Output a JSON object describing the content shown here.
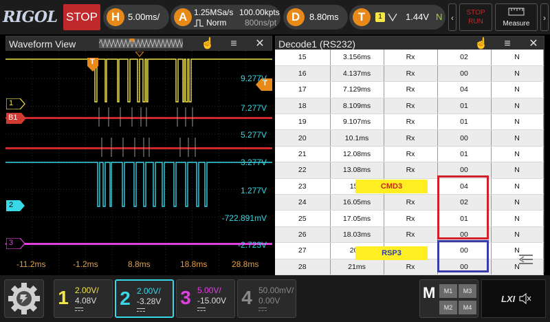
{
  "topbar": {
    "logo": "RIGOL",
    "run_state": "STOP",
    "horizontal": {
      "badge": "H",
      "timebase": "5.00ms/"
    },
    "acquire": {
      "badge": "A",
      "sample_rate": "1.25MSa/s",
      "mode": "Norm",
      "points": "100.00kpts",
      "time": "800ns/pt"
    },
    "delay": {
      "badge": "D",
      "value": "8.80ms"
    },
    "trigger": {
      "badge": "T",
      "source": "1",
      "level": "1.44V",
      "mode": "N"
    },
    "stop_run": {
      "line1": "STOP",
      "line2": "RUN"
    },
    "measure_label": "Measure"
  },
  "waveform_view": {
    "title": "Waveform View",
    "channel_markers": [
      "1",
      "B1",
      "2",
      "3"
    ],
    "trigger_marker": "T",
    "voltage_labels": [
      "9.277V",
      "7.277V",
      "5.277V",
      "3.277V",
      "1.277V",
      "-722.891mV",
      "-2.723V"
    ],
    "time_labels": [
      "-11.2ms",
      "-1.2ms",
      "8.8ms",
      "18.8ms",
      "28.8ms"
    ]
  },
  "decode": {
    "title": "Decode1 (RS232)",
    "rows": [
      [
        "15",
        "3.156ms",
        "Rx",
        "02",
        "N"
      ],
      [
        "16",
        "4.137ms",
        "Rx",
        "00",
        "N"
      ],
      [
        "17",
        "7.129ms",
        "Rx",
        "04",
        "N"
      ],
      [
        "18",
        "8.109ms",
        "Rx",
        "01",
        "N"
      ],
      [
        "19",
        "9.107ms",
        "Rx",
        "01",
        "N"
      ],
      [
        "20",
        "10.1ms",
        "Rx",
        "00",
        "N"
      ],
      [
        "21",
        "12.08ms",
        "Rx",
        "01",
        "N"
      ],
      [
        "22",
        "13.08ms",
        "Rx",
        "00",
        "N"
      ],
      [
        "23",
        "15.0",
        "",
        "04",
        "N"
      ],
      [
        "24",
        "16.05ms",
        "Rx",
        "02",
        "N"
      ],
      [
        "25",
        "17.05ms",
        "Rx",
        "01",
        "N"
      ],
      [
        "26",
        "18.03ms",
        "Rx",
        "00",
        "N"
      ],
      [
        "27",
        "20.0",
        "",
        "00",
        "N"
      ],
      [
        "28",
        "21ms",
        "Rx",
        "00",
        "N"
      ]
    ],
    "annotation_cmd": "CMD3",
    "annotation_rsp": "RSP3"
  },
  "channels": [
    {
      "num": "1",
      "scale": "2.00V/",
      "offset": "4.08V",
      "color": "#f5e64a"
    },
    {
      "num": "2",
      "scale": "2.00V/",
      "offset": "-3.28V",
      "color": "#38d8e8"
    },
    {
      "num": "3",
      "scale": "5.00V/",
      "offset": "-15.00V",
      "color": "#e040e0"
    },
    {
      "num": "4",
      "scale": "50.00mV/",
      "offset": "0.00V",
      "color": "#8a8a8a"
    }
  ],
  "math": {
    "label": "M",
    "m1": "M1",
    "m2": "M2",
    "m3": "M3",
    "m4": "M4"
  },
  "lxi_label": "LXI",
  "colors": {
    "ch1": "#f5e64a",
    "ch2": "#38d8e8",
    "ch3": "#e040e0",
    "bus": "#d02828",
    "trigger": "#e88a1a"
  }
}
